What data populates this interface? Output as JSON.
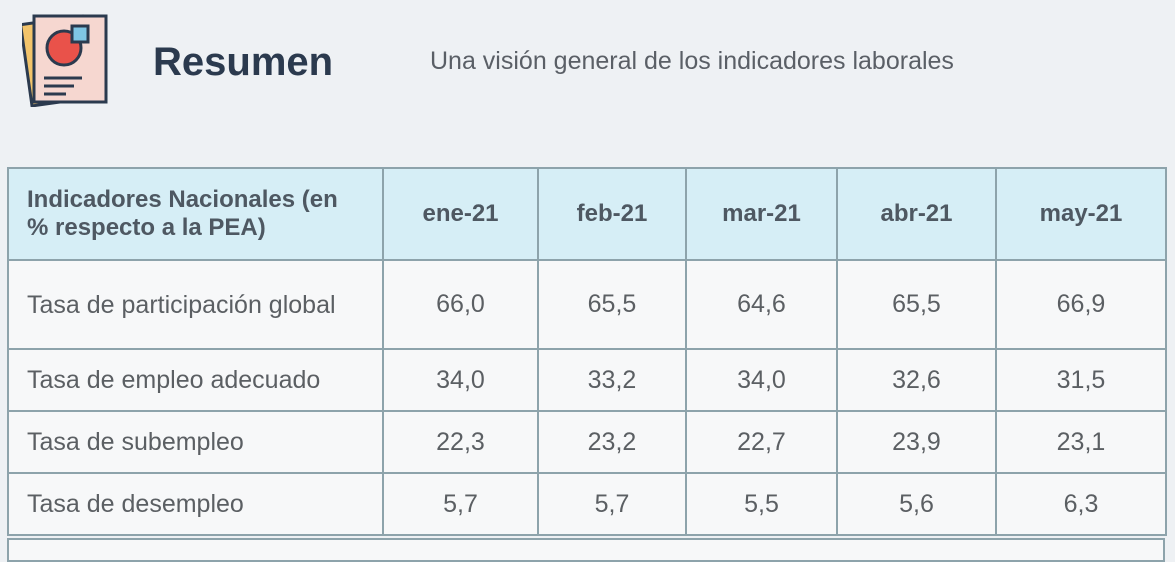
{
  "header": {
    "title": "Resumen",
    "subtitle": "Una visión general de los indicadores laborales"
  },
  "table": {
    "headers": [
      "Indicadores Nacionales (en % respecto a la PEA)",
      "ene-21",
      "feb-21",
      "mar-21",
      "abr-21",
      "may-21"
    ],
    "rows": [
      [
        "Tasa de participación global",
        "66,0",
        "65,5",
        "64,6",
        "65,5",
        "66,9"
      ],
      [
        "Tasa de empleo adecuado",
        "34,0",
        "33,2",
        "34,0",
        "32,6",
        "31,5"
      ],
      [
        "Tasa de subempleo",
        "22,3",
        "23,2",
        "22,7",
        "23,9",
        "23,1"
      ],
      [
        "Tasa de desempleo",
        "5,7",
        "5,7",
        "5,5",
        "5,6",
        "6,3"
      ]
    ]
  }
}
